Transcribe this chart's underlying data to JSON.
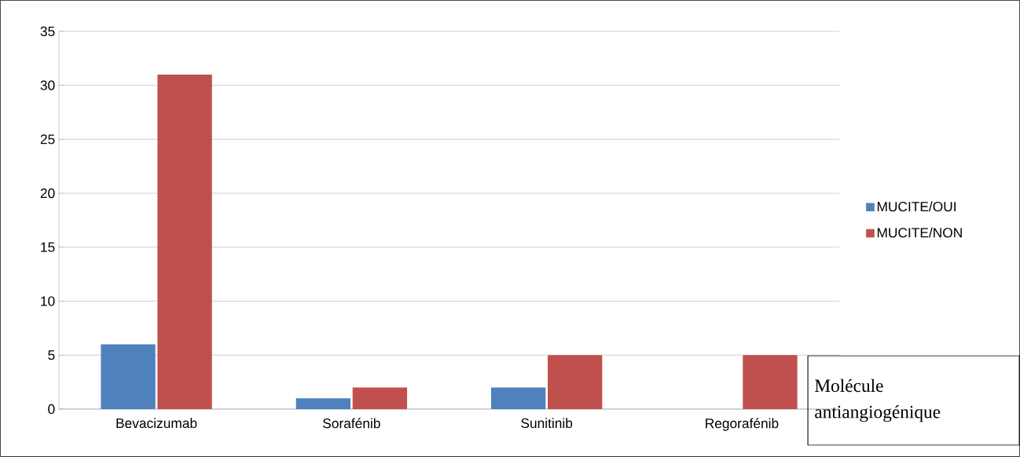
{
  "chart_data": {
    "type": "bar",
    "xlabel": "Molécule antiangiogénique",
    "categories": [
      "Bevacizumab",
      "Sorafénib",
      "Sunitinib",
      "Regorafénib"
    ],
    "series": [
      {
        "name": "MUCITE/OUI",
        "color": "#4f81bd",
        "values": [
          6,
          1,
          2,
          0
        ]
      },
      {
        "name": "MUCITE/NON",
        "color": "#c0504d",
        "values": [
          31,
          2,
          5,
          5
        ]
      }
    ],
    "ylim": [
      0,
      35
    ],
    "yticks": [
      0,
      5,
      10,
      15,
      20,
      25,
      30,
      35
    ],
    "grid": "y",
    "legend": "right"
  }
}
